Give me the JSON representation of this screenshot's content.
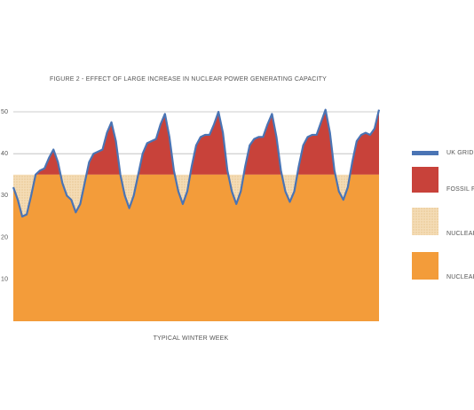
{
  "chart_data": {
    "type": "area",
    "title": "FIGURE 2 - EFFECT OF LARGE INCREASE IN NUCLEAR POWER GENERATING CAPACITY",
    "xlabel": "TYPICAL WINTER WEEK",
    "ylim": [
      0,
      50
    ],
    "yticks": [
      10,
      20,
      30,
      40,
      50
    ],
    "grid": true,
    "series": [
      {
        "name": "UK GRID D",
        "color": "#4a74b4",
        "role": "line",
        "values": [
          32,
          29,
          25,
          25.5,
          30,
          35,
          36,
          36.5,
          39,
          41,
          38,
          33,
          30,
          29,
          26,
          28,
          33,
          38,
          40,
          40.5,
          41,
          45,
          47.5,
          43,
          35,
          30,
          27,
          30,
          35,
          40,
          42.5,
          43,
          43.5,
          47,
          49.5,
          44,
          36,
          31,
          28,
          31,
          37,
          42,
          44,
          44.5,
          44.5,
          47,
          50,
          45,
          36,
          31,
          28,
          31,
          37,
          42,
          43.5,
          44,
          44,
          47,
          49.5,
          44,
          36,
          31,
          28.5,
          31,
          37,
          42,
          44,
          44.5,
          44.5,
          47.5,
          50.5,
          45,
          36,
          31,
          29,
          32,
          38,
          43,
          44.5,
          45,
          44.5,
          46,
          50.5
        ]
      },
      {
        "name": "FOSSIL FU",
        "color": "#c8423a",
        "role": "above"
      },
      {
        "name": "NUCLEAR",
        "color": "#f2d6aa",
        "role": "surplus",
        "value": 35
      },
      {
        "name": "NUCLEAR",
        "color": "#f39c3a",
        "role": "base",
        "value": 35
      }
    ]
  }
}
